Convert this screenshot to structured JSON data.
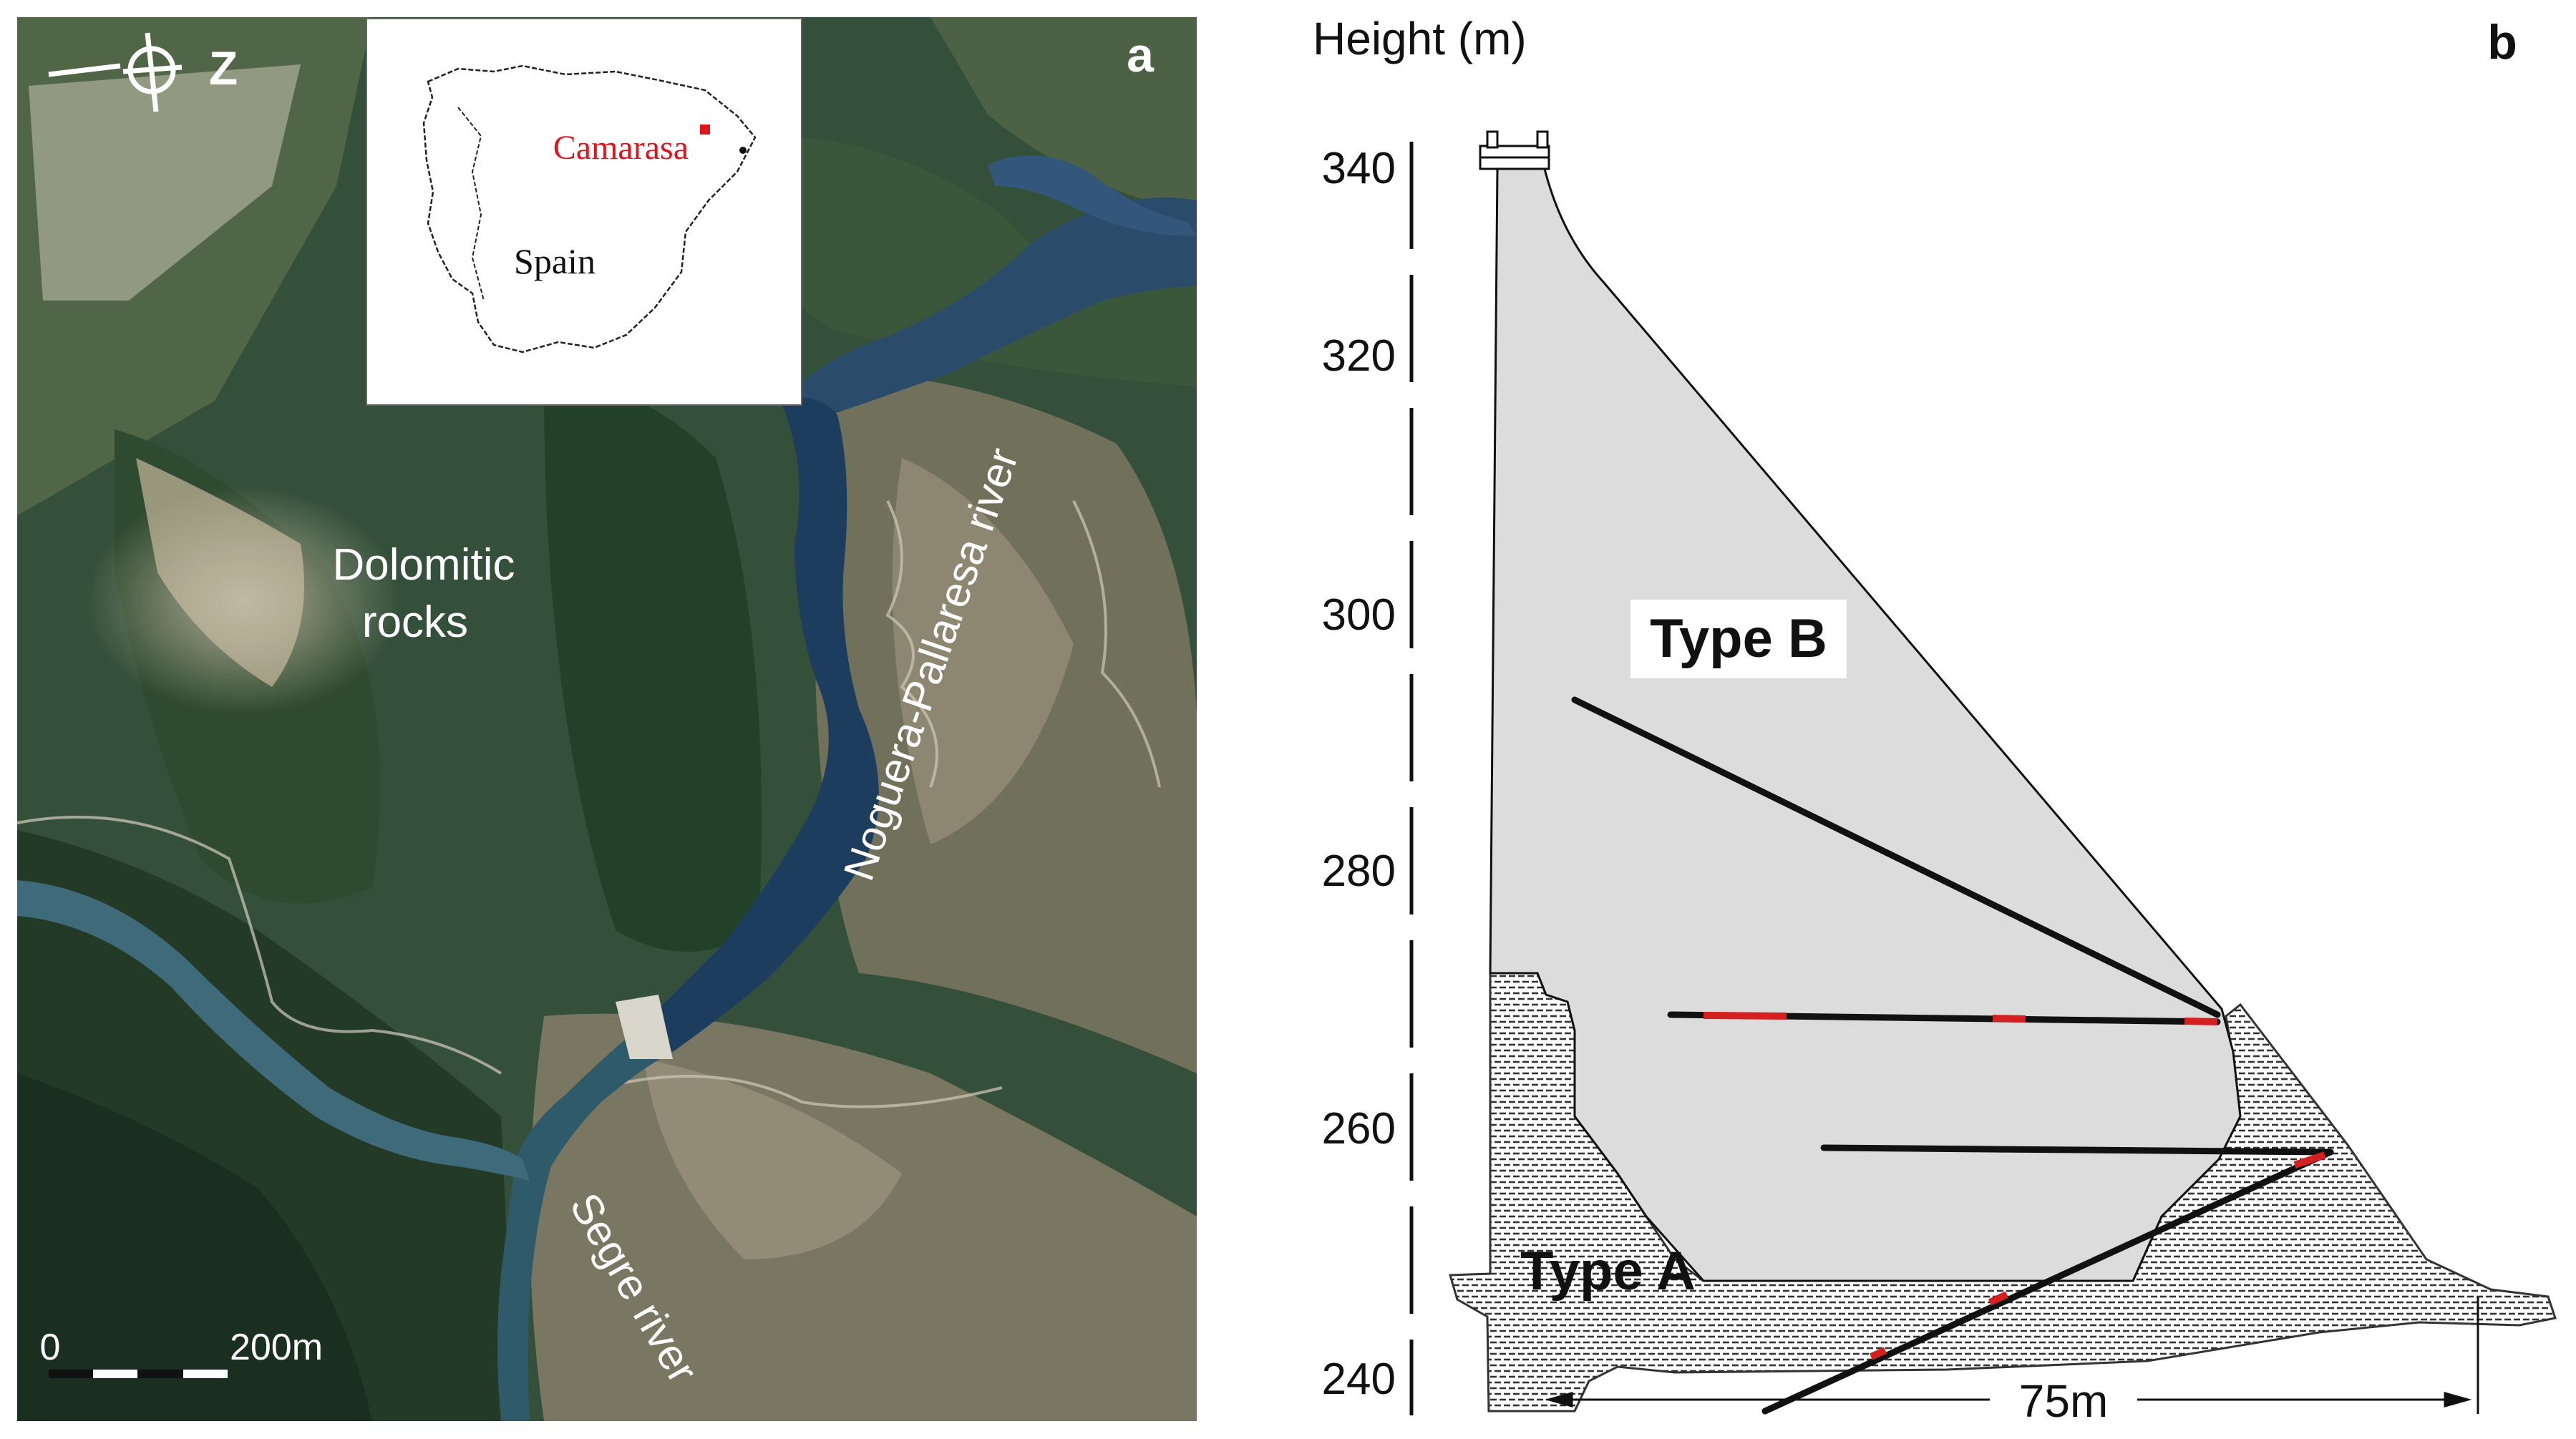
{
  "panel_a": {
    "label": "a",
    "north_arrow": {
      "letter": "Z",
      "icon": "north-arrow-icon"
    },
    "inset": {
      "country": "Spain",
      "site": "Camarasa",
      "site_color": "#e0141c"
    },
    "labels": {
      "rocks_line1": "Dolomitic",
      "rocks_line2": "rocks",
      "river_main": "Noguera-Pallaresa river",
      "river_secondary": "Segre river"
    },
    "scale_bar": {
      "start": "0",
      "end": "200m"
    },
    "colors": {
      "water": "#1d3d5e",
      "forest": "#2a4430",
      "rock": "#a59a82"
    }
  },
  "panel_b": {
    "label": "b",
    "axis_title": "Height (m)",
    "ticks": [
      "340",
      "320",
      "300",
      "280",
      "260",
      "240"
    ],
    "type_b_label": "Type B",
    "type_a_label": "Type A",
    "dimension_label": "75m",
    "colors": {
      "dam_fill": "#dcdcdc",
      "fracture": "#111111",
      "highlight": "#d42020"
    }
  }
}
